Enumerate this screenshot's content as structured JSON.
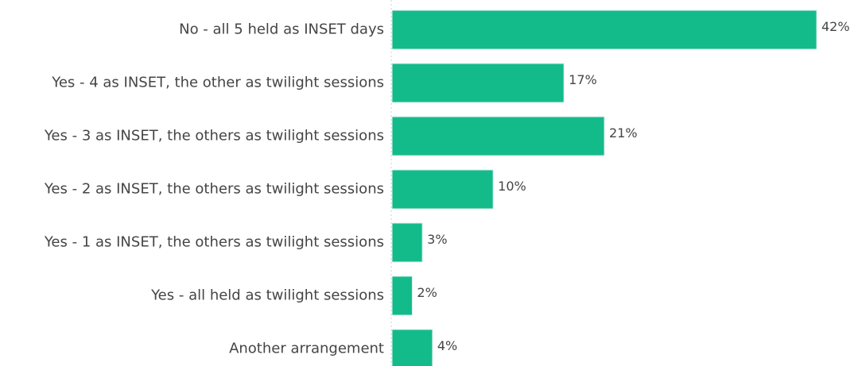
{
  "chart_data": {
    "type": "bar",
    "orientation": "horizontal",
    "categories": [
      "No - all 5 held as INSET days",
      "Yes - 4 as INSET, the other as twilight sessions",
      "Yes - 3 as INSET, the others as twilight sessions",
      "Yes - 2 as INSET, the others as twilight sessions",
      "Yes - 1 as INSET, the others as twilight sessions",
      "Yes - all held as twilight sessions",
      "Another arrangement"
    ],
    "values": [
      42,
      17,
      21,
      10,
      3,
      2,
      4
    ],
    "value_labels": [
      "42%",
      "17%",
      "21%",
      "10%",
      "3%",
      "2%",
      "4%"
    ],
    "color": "#13bb8b"
  }
}
